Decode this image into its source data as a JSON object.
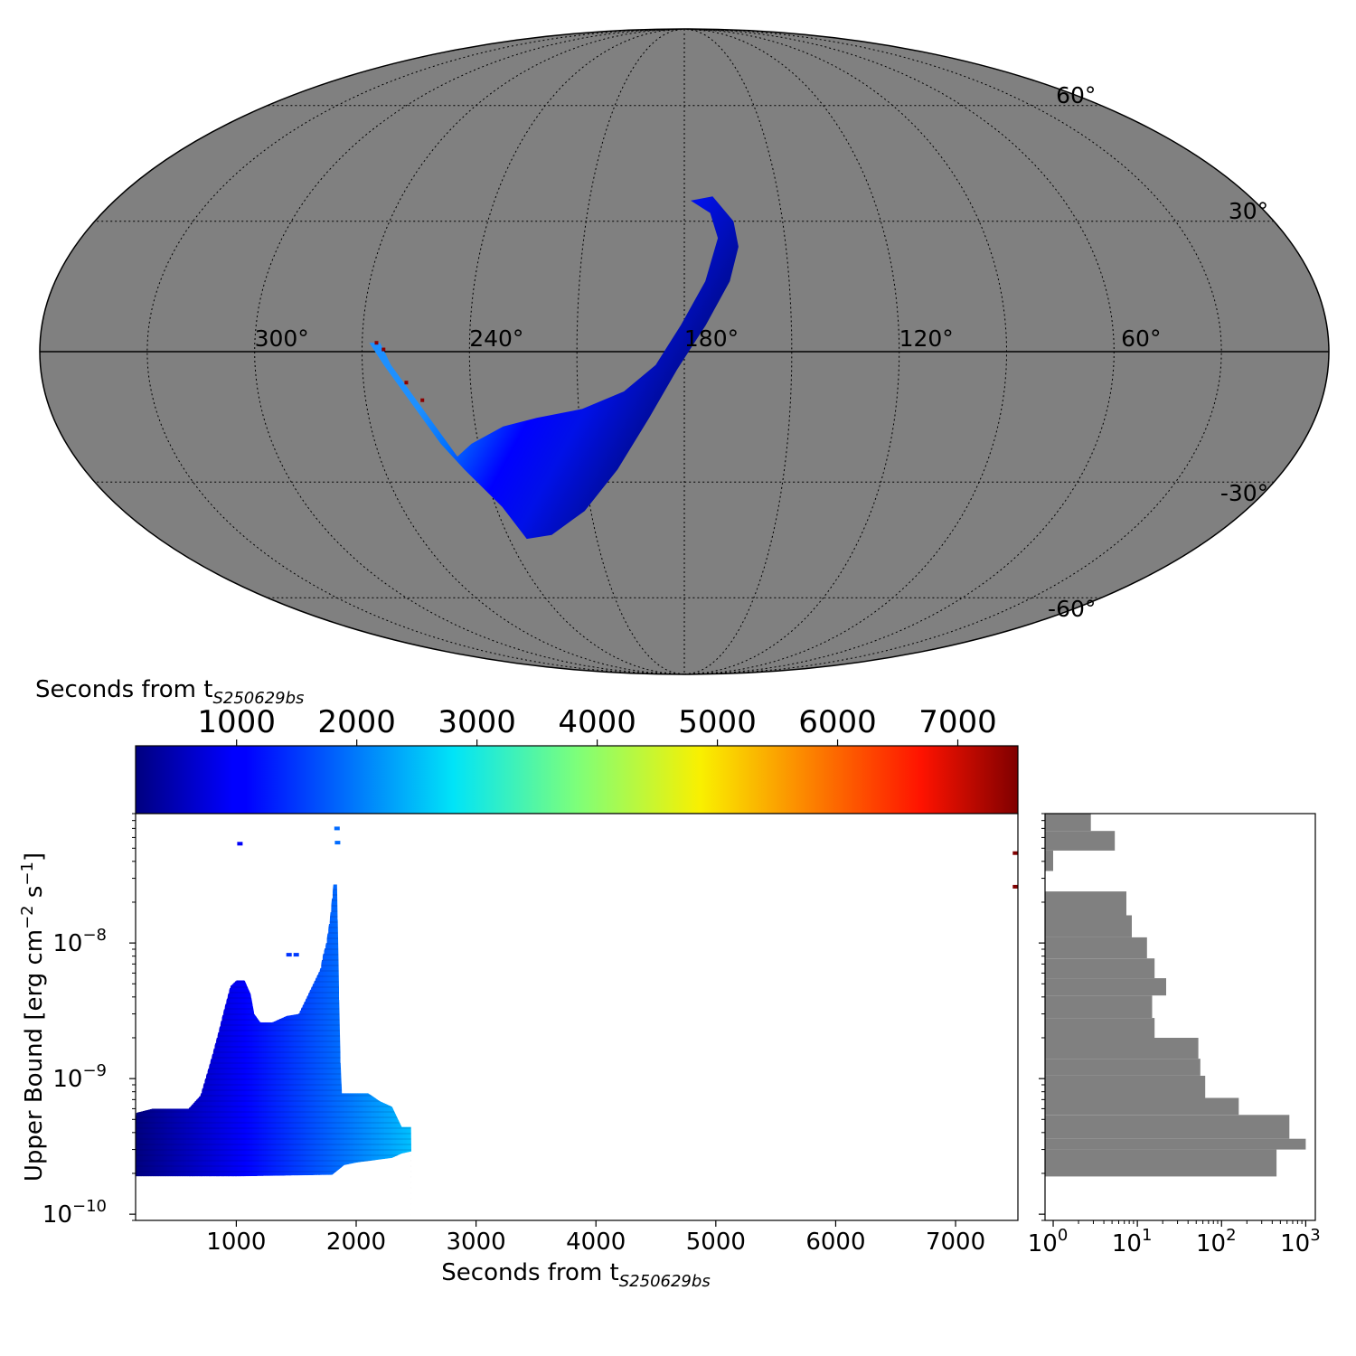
{
  "chart_data": [
    {
      "panel": "sky-map",
      "type": "heatmap",
      "projection": "mollweide",
      "background_color": "#808080",
      "colormap": "jet",
      "lon_tick_labels": [
        "300°",
        "240°",
        "180°",
        "120°",
        "60°"
      ],
      "lat_tick_labels": [
        "60°",
        "30°",
        "-30°",
        "-60°"
      ],
      "grid": "dotted, every 30°",
      "region": {
        "description_from_pixels": "coloured localization band",
        "outline_lonlat": [
          [
            178,
            35
          ],
          [
            172,
            32
          ],
          [
            170,
            26
          ],
          [
            174,
            16
          ],
          [
            181,
            6
          ],
          [
            188,
            -3
          ],
          [
            197,
            -9
          ],
          [
            209,
            -13
          ],
          [
            222,
            -15
          ],
          [
            232,
            -17
          ],
          [
            242,
            -21
          ],
          [
            247,
            -24
          ],
          [
            262,
            -3
          ],
          [
            265,
            2
          ],
          [
            268,
            2
          ],
          [
            264,
            -3
          ],
          [
            251,
            -21
          ],
          [
            246,
            -27
          ],
          [
            238,
            -36
          ],
          [
            234,
            -44
          ],
          [
            225,
            -43
          ],
          [
            212,
            -37
          ],
          [
            200,
            -27
          ],
          [
            190,
            -15
          ],
          [
            182,
            -4
          ],
          [
            174,
            6
          ],
          [
            167,
            16
          ],
          [
            164,
            24
          ],
          [
            165,
            30
          ],
          [
            171,
            36
          ]
        ],
        "values_seconds_range": [
          200,
          1800
        ]
      },
      "outlier_points_lonlat": [
        [
          266,
          2
        ],
        [
          264,
          0.5
        ],
        [
          258,
          -7
        ],
        [
          254,
          -11
        ]
      ]
    },
    {
      "panel": "colorbar",
      "label_text": "Seconds from t",
      "label_subscript": "S250629bs",
      "range": [
        160,
        7500
      ],
      "ticks": [
        "1000",
        "2000",
        "3000",
        "4000",
        "5000",
        "6000",
        "7000"
      ],
      "colormap": "jet"
    },
    {
      "panel": "scatter",
      "type": "scatter",
      "xlabel_text": "Seconds from t",
      "xlabel_subscript": "S250629bs",
      "ylabel": "Upper Bound [erg cm⁻² s⁻¹]",
      "ylabel_parts": [
        "Upper Bound [erg cm",
        "−2",
        " s",
        "−1",
        "]"
      ],
      "xlim": [
        160,
        7520
      ],
      "ylim": [
        9e-11,
        9e-08
      ],
      "yscale": "log",
      "x_ticks": [
        "1000",
        "2000",
        "3000",
        "4000",
        "5000",
        "6000",
        "7000"
      ],
      "y_ticks": [
        {
          "base": "10",
          "exp": "−8",
          "value": 1e-08
        },
        {
          "base": "10",
          "exp": "−9",
          "value": 1e-09
        },
        {
          "base": "10",
          "exp": "−10",
          "value": 1e-10
        }
      ],
      "envelope": {
        "description_from_pixels": "dense band of horizontal strokes coloured by x",
        "upper_edge": [
          [
            160,
            4.8e-10
          ],
          [
            165,
            5.6e-10
          ],
          [
            300,
            6e-10
          ],
          [
            600,
            6e-10
          ],
          [
            700,
            7.5e-10
          ],
          [
            800,
            1.5e-09
          ],
          [
            850,
            2.2e-09
          ],
          [
            900,
            3.3e-09
          ],
          [
            950,
            4.8e-09
          ],
          [
            1000,
            5.3e-09
          ],
          [
            1070,
            5.3e-09
          ],
          [
            1120,
            4.2e-09
          ],
          [
            1150,
            3e-09
          ],
          [
            1200,
            2.6e-09
          ],
          [
            1300,
            2.6e-09
          ],
          [
            1420,
            2.9e-09
          ],
          [
            1520,
            3e-09
          ],
          [
            1600,
            4.2e-09
          ],
          [
            1700,
            6.4e-09
          ],
          [
            1720,
            8e-09
          ],
          [
            1750,
            1e-08
          ],
          [
            1780,
            1.5e-08
          ],
          [
            1810,
            2.7e-08
          ],
          [
            1840,
            2.7e-08
          ],
          [
            1850,
            1e-08
          ],
          [
            1860,
            3e-09
          ],
          [
            1870,
            1.3e-09
          ],
          [
            1880,
            7.8e-10
          ],
          [
            2000,
            7.8e-10
          ],
          [
            2100,
            7.8e-10
          ],
          [
            2200,
            6.8e-10
          ],
          [
            2300,
            6.2e-10
          ],
          [
            2380,
            4.4e-10
          ],
          [
            2460,
            4.4e-10
          ],
          [
            2460,
            2.9e-10
          ]
        ],
        "lower_edge": [
          [
            2460,
            2.9e-10
          ],
          [
            2380,
            2.8e-10
          ],
          [
            2300,
            2.6e-10
          ],
          [
            2000,
            2.4e-10
          ],
          [
            1900,
            2.3e-10
          ],
          [
            1800,
            1.95e-10
          ],
          [
            1000,
            1.9e-10
          ],
          [
            500,
            1.9e-10
          ],
          [
            160,
            1.9e-10
          ]
        ]
      },
      "sparse_points": [
        [
          1030,
          5.4e-08
        ],
        [
          1440,
          8.2e-09
        ],
        [
          1500,
          8.2e-09
        ],
        [
          1840,
          7e-08
        ],
        [
          1845,
          5.5e-08
        ],
        [
          7500,
          4.6e-08
        ],
        [
          7500,
          2.6e-08
        ]
      ]
    },
    {
      "panel": "histogram",
      "type": "bar",
      "orientation": "horizontal",
      "xscale": "log",
      "x_ticks": [
        {
          "base": "10",
          "exp": "0",
          "value": 1
        },
        {
          "base": "10",
          "exp": "1",
          "value": 10
        },
        {
          "base": "10",
          "exp": "2",
          "value": 100
        },
        {
          "base": "10",
          "exp": "3",
          "value": 1000
        }
      ],
      "bar_color": "#808080",
      "bins": [
        {
          "y_low": 1.9e-10,
          "y_high": 3e-10,
          "count": 450
        },
        {
          "y_low": 3e-10,
          "y_high": 3.6e-10,
          "count": 1000
        },
        {
          "y_low": 3.6e-10,
          "y_high": 5.4e-10,
          "count": 640
        },
        {
          "y_low": 5.4e-10,
          "y_high": 7.2e-10,
          "count": 160
        },
        {
          "y_low": 7.2e-10,
          "y_high": 1.05e-09,
          "count": 64
        },
        {
          "y_low": 1.05e-09,
          "y_high": 1.4e-09,
          "count": 56
        },
        {
          "y_low": 1.4e-09,
          "y_high": 2e-09,
          "count": 53
        },
        {
          "y_low": 2e-09,
          "y_high": 2.8e-09,
          "count": 16
        },
        {
          "y_low": 2.8e-09,
          "y_high": 4.1e-09,
          "count": 15
        },
        {
          "y_low": 4.1e-09,
          "y_high": 5.5e-09,
          "count": 22
        },
        {
          "y_low": 5.5e-09,
          "y_high": 7.7e-09,
          "count": 16
        },
        {
          "y_low": 7.7e-09,
          "y_high": 1.1e-08,
          "count": 13
        },
        {
          "y_low": 1.1e-08,
          "y_high": 1.6e-08,
          "count": 8.6
        },
        {
          "y_low": 1.6e-08,
          "y_high": 2.4e-08,
          "count": 7.4
        },
        {
          "y_low": 2.4e-08,
          "y_high": 3.4e-08,
          "count": 0
        },
        {
          "y_low": 3.4e-08,
          "y_high": 4.8e-08,
          "count": 1
        },
        {
          "y_low": 4.8e-08,
          "y_high": 6.7e-08,
          "count": 5.4
        },
        {
          "y_low": 6.7e-08,
          "y_high": 9e-08,
          "count": 2.8
        }
      ]
    }
  ]
}
